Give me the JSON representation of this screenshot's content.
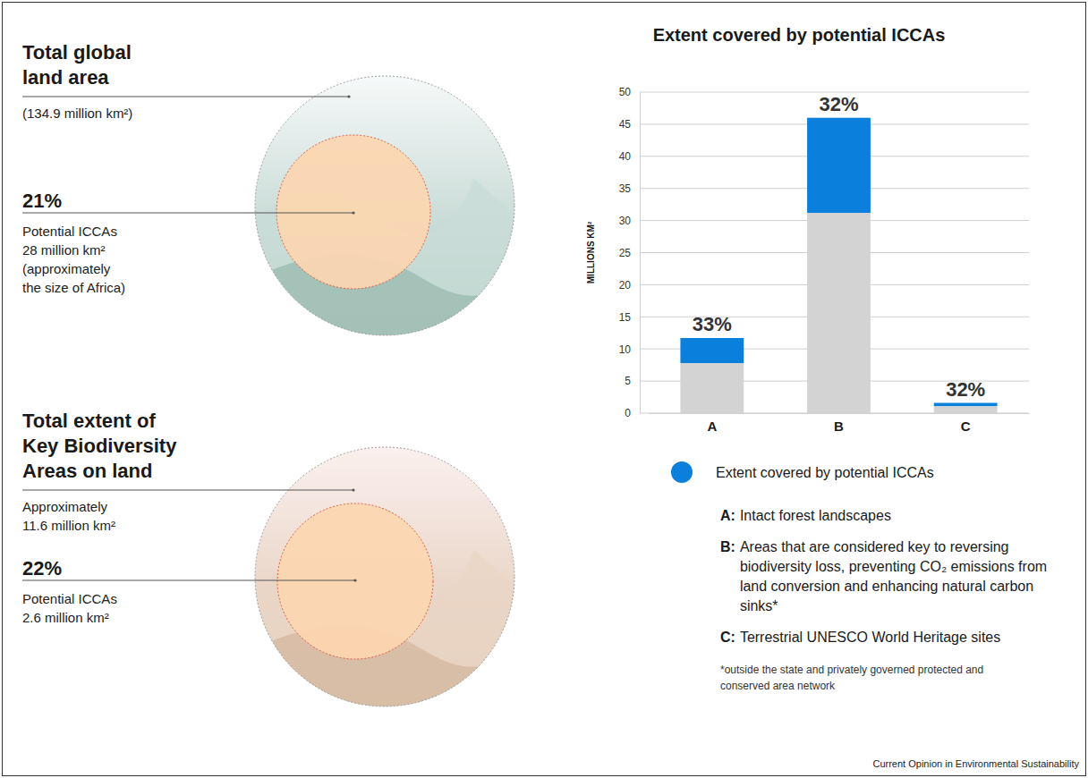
{
  "panels": [
    {
      "heading": [
        "Total global",
        "land area"
      ],
      "subheading": [
        "(134.9 million km²)"
      ],
      "percent": "21%",
      "detail": [
        "Potential ICCAs",
        "28 million km²",
        "(approximately",
        "the size of Africa)"
      ]
    },
    {
      "heading": [
        "Total extent of",
        "Key Biodiversity",
        "Areas on land"
      ],
      "subheading": [
        "Approximately",
        "11.6 million km²"
      ],
      "percent": "22%",
      "detail": [
        "Potential ICCAs",
        "2.6 million km²"
      ]
    }
  ],
  "chart_data": {
    "type": "bar",
    "title": "Extent covered by potential ICCAs",
    "y_label": "MILLIONS KM²",
    "categories": [
      "A",
      "B",
      "C"
    ],
    "stacked": true,
    "series": [
      {
        "color": "#d3d3d3",
        "values": [
          7.8,
          31.2,
          1.1
        ]
      },
      {
        "name": "Extent covered by potential ICCAs",
        "color": "#0a7fdb",
        "values": [
          3.9,
          14.8,
          0.5
        ]
      }
    ],
    "annotations": [
      "33%",
      "32%",
      "32%"
    ],
    "ylim": [
      0,
      50
    ],
    "yticks": [
      0,
      5,
      10,
      15,
      20,
      25,
      30,
      35,
      40,
      45,
      50
    ],
    "grid": true,
    "legend": "bottom"
  },
  "key": {
    "items": [
      {
        "letter": "A:",
        "text": "Intact forest landscapes"
      },
      {
        "letter": "B:",
        "text": "Areas that are considered key to reversing biodiversity loss, preventing CO₂ emissions from land conversion and enhancing natural carbon sinks*"
      },
      {
        "letter": "C:",
        "text": "Terrestrial UNESCO World Heritage sites"
      }
    ],
    "footnote": "*outside the state and privately governed protected and conserved area network"
  },
  "source": "Current Opinion in Environmental Sustainability"
}
